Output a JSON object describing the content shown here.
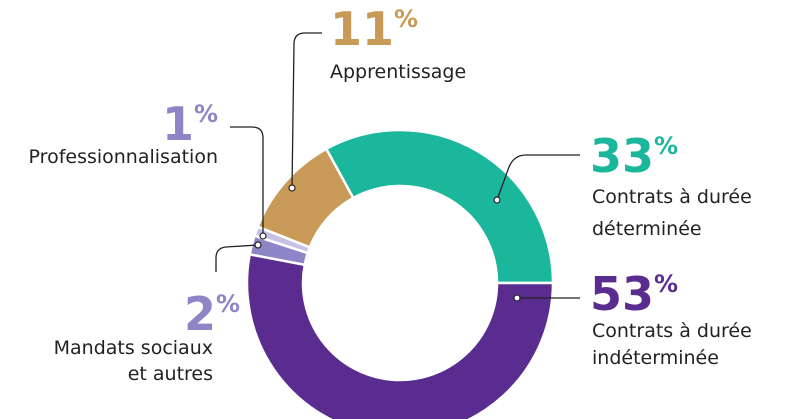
{
  "chart_data": {
    "type": "donut",
    "categories": [
      [
        "Contrats à durée",
        "déterminée"
      ],
      [
        "Contrats à durée",
        "indéterminée"
      ],
      [
        "Mandats sociaux",
        "et autres"
      ],
      [
        "Professionnalisation"
      ],
      [
        "Apprentissage"
      ]
    ],
    "values": [
      33,
      53,
      2,
      1,
      11
    ],
    "unit": "%",
    "colors": [
      "#1bb79d",
      "#5b2c8f",
      "#8e85c6",
      "#c7c1e6",
      "#c99a57"
    ]
  }
}
